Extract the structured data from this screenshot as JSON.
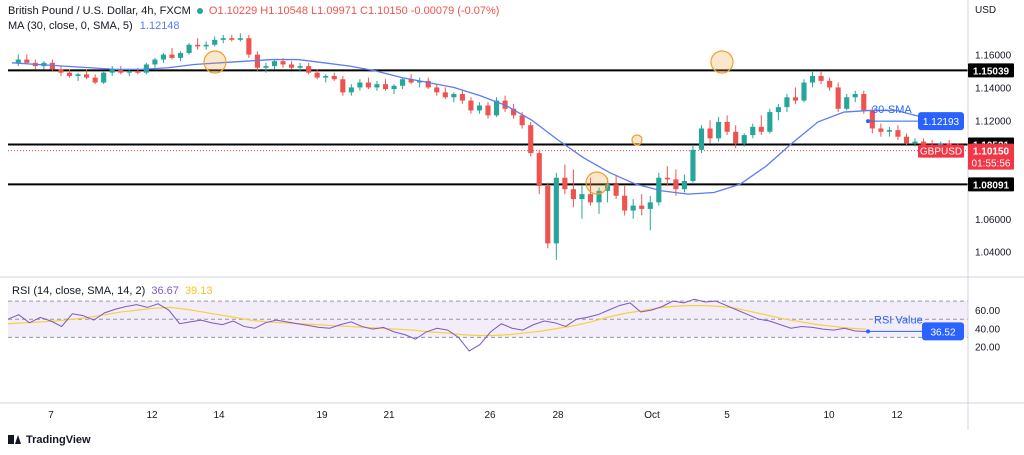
{
  "header": {
    "symbol": "British Pound / U.S. Dollar, 4h, FXCM",
    "ohlc": "O1.10229 H1.10548 L1.09971 C1.10150 -0.00079 (-0.07%)",
    "ma_label": "MA (30, close, 0, SMA, 5)",
    "ma_value": "1.12148",
    "rsi_label": "RSI (14, close, SMA, 14, 2)",
    "rsi_value": "36.67",
    "rsi_ma_value": "39.13",
    "currency": "USD"
  },
  "brand": "TradingView",
  "colors": {
    "up": "#26a69a",
    "down": "#ef5350",
    "ma": "#5b7cf5",
    "rsi": "#7e57c2",
    "rsi_ma": "#f5d142",
    "highlight": "#f0a030",
    "label_blue": "#2962ff",
    "badge_red": "#f23645",
    "black": "#000000",
    "grid_text": "#131722"
  },
  "chart_data": {
    "type": "candlestick",
    "instrument": "GBPUSD",
    "timeframe": "4h",
    "price_axis": {
      "ticks": [
        "1.16000",
        "1.14000",
        "1.12000",
        "1.10000",
        "1.08000",
        "1.06000",
        "1.04000"
      ],
      "ylim": [
        1.03,
        1.175
      ]
    },
    "rsi_axis": {
      "ticks": [
        "60.00",
        "40.00",
        "20.00"
      ],
      "ylim": [
        5,
        80
      ],
      "bands": [
        70,
        50,
        30
      ]
    },
    "x_labels": [
      "7",
      "12",
      "14",
      "19",
      "21",
      "26",
      "28",
      "Oct",
      "5",
      "10",
      "12"
    ],
    "levels": [
      {
        "price": 1.15039,
        "label": "1.15039"
      },
      {
        "price": 1.10521,
        "label": "1.10521"
      },
      {
        "price": 1.08091,
        "label": "1.08091"
      }
    ],
    "last_price": {
      "symbol": "GBPUSD",
      "value": "1.10150",
      "countdown": "01:55:56"
    },
    "sma_label": {
      "text": "30-SMA",
      "value": "1.12193"
    },
    "rsi_label": {
      "text": "RSI Value",
      "value": "36.52"
    },
    "highlights": [
      "swing high area mid-Sep",
      "swing low late Sep",
      "minor pivot end Sep",
      "swing high early Oct"
    ],
    "candles": [
      [
        1.155,
        1.16,
        1.153,
        1.157
      ],
      [
        1.157,
        1.16,
        1.154,
        1.155
      ],
      [
        1.155,
        1.157,
        1.151,
        1.153
      ],
      [
        1.153,
        1.156,
        1.151,
        1.155
      ],
      [
        1.155,
        1.157,
        1.15,
        1.151
      ],
      [
        1.151,
        1.153,
        1.147,
        1.149
      ],
      [
        1.149,
        1.151,
        1.146,
        1.147
      ],
      [
        1.147,
        1.149,
        1.144,
        1.148
      ],
      [
        1.148,
        1.151,
        1.145,
        1.146
      ],
      [
        1.146,
        1.148,
        1.142,
        1.143
      ],
      [
        1.143,
        1.15,
        1.142,
        1.149
      ],
      [
        1.149,
        1.153,
        1.147,
        1.151
      ],
      [
        1.151,
        1.153,
        1.148,
        1.149
      ],
      [
        1.149,
        1.151,
        1.147,
        1.15
      ],
      [
        1.15,
        1.152,
        1.148,
        1.149
      ],
      [
        1.149,
        1.155,
        1.148,
        1.154
      ],
      [
        1.154,
        1.158,
        1.152,
        1.157
      ],
      [
        1.157,
        1.161,
        1.155,
        1.16
      ],
      [
        1.16,
        1.164,
        1.157,
        1.158
      ],
      [
        1.158,
        1.162,
        1.156,
        1.161
      ],
      [
        1.161,
        1.167,
        1.16,
        1.166
      ],
      [
        1.166,
        1.17,
        1.163,
        1.165
      ],
      [
        1.165,
        1.168,
        1.163,
        1.166
      ],
      [
        1.166,
        1.171,
        1.165,
        1.169
      ],
      [
        1.169,
        1.172,
        1.167,
        1.17
      ],
      [
        1.17,
        1.172,
        1.168,
        1.169
      ],
      [
        1.169,
        1.173,
        1.168,
        1.17
      ],
      [
        1.17,
        1.172,
        1.158,
        1.16
      ],
      [
        1.16,
        1.162,
        1.15,
        1.152
      ],
      [
        1.152,
        1.155,
        1.149,
        1.153
      ],
      [
        1.153,
        1.157,
        1.151,
        1.156
      ],
      [
        1.156,
        1.158,
        1.152,
        1.154
      ],
      [
        1.154,
        1.156,
        1.151,
        1.152
      ],
      [
        1.152,
        1.155,
        1.15,
        1.153
      ],
      [
        1.153,
        1.155,
        1.148,
        1.149
      ],
      [
        1.149,
        1.151,
        1.145,
        1.146
      ],
      [
        1.146,
        1.148,
        1.143,
        1.147
      ],
      [
        1.147,
        1.149,
        1.144,
        1.145
      ],
      [
        1.145,
        1.147,
        1.135,
        1.137
      ],
      [
        1.137,
        1.142,
        1.135,
        1.14
      ],
      [
        1.14,
        1.145,
        1.138,
        1.143
      ],
      [
        1.143,
        1.146,
        1.139,
        1.14
      ],
      [
        1.14,
        1.144,
        1.138,
        1.142
      ],
      [
        1.142,
        1.145,
        1.138,
        1.139
      ],
      [
        1.139,
        1.142,
        1.136,
        1.141
      ],
      [
        1.141,
        1.146,
        1.139,
        1.145
      ],
      [
        1.145,
        1.148,
        1.142,
        1.143
      ],
      [
        1.143,
        1.146,
        1.14,
        1.144
      ],
      [
        1.144,
        1.146,
        1.139,
        1.14
      ],
      [
        1.14,
        1.142,
        1.135,
        1.137
      ],
      [
        1.137,
        1.14,
        1.133,
        1.134
      ],
      [
        1.134,
        1.137,
        1.131,
        1.136
      ],
      [
        1.136,
        1.138,
        1.13,
        1.132
      ],
      [
        1.132,
        1.134,
        1.124,
        1.126
      ],
      [
        1.126,
        1.131,
        1.124,
        1.129
      ],
      [
        1.129,
        1.131,
        1.121,
        1.123
      ],
      [
        1.123,
        1.134,
        1.122,
        1.132
      ],
      [
        1.132,
        1.135,
        1.125,
        1.127
      ],
      [
        1.127,
        1.13,
        1.121,
        1.123
      ],
      [
        1.123,
        1.125,
        1.115,
        1.117
      ],
      [
        1.117,
        1.119,
        1.098,
        1.1
      ],
      [
        1.1,
        1.102,
        1.075,
        1.08
      ],
      [
        1.08,
        1.082,
        1.042,
        1.045
      ],
      [
        1.045,
        1.088,
        1.035,
        1.085
      ],
      [
        1.085,
        1.093,
        1.075,
        1.078
      ],
      [
        1.078,
        1.09,
        1.067,
        1.072
      ],
      [
        1.072,
        1.08,
        1.06,
        1.075
      ],
      [
        1.075,
        1.085,
        1.068,
        1.07
      ],
      [
        1.07,
        1.079,
        1.063,
        1.077
      ],
      [
        1.077,
        1.085,
        1.07,
        1.081
      ],
      [
        1.081,
        1.086,
        1.072,
        1.074
      ],
      [
        1.074,
        1.08,
        1.062,
        1.065
      ],
      [
        1.065,
        1.072,
        1.06,
        1.068
      ],
      [
        1.068,
        1.075,
        1.062,
        1.066
      ],
      [
        1.066,
        1.074,
        1.053,
        1.07
      ],
      [
        1.07,
        1.088,
        1.068,
        1.085
      ],
      [
        1.085,
        1.092,
        1.08,
        1.084
      ],
      [
        1.084,
        1.09,
        1.074,
        1.078
      ],
      [
        1.078,
        1.087,
        1.076,
        1.083
      ],
      [
        1.083,
        1.105,
        1.082,
        1.102
      ],
      [
        1.102,
        1.117,
        1.1,
        1.115
      ],
      [
        1.115,
        1.12,
        1.106,
        1.109
      ],
      [
        1.109,
        1.122,
        1.107,
        1.119
      ],
      [
        1.119,
        1.123,
        1.111,
        1.113
      ],
      [
        1.113,
        1.117,
        1.103,
        1.106
      ],
      [
        1.106,
        1.112,
        1.104,
        1.111
      ],
      [
        1.111,
        1.118,
        1.109,
        1.116
      ],
      [
        1.116,
        1.123,
        1.111,
        1.113
      ],
      [
        1.113,
        1.127,
        1.112,
        1.125
      ],
      [
        1.125,
        1.13,
        1.12,
        1.128
      ],
      [
        1.128,
        1.136,
        1.125,
        1.134
      ],
      [
        1.134,
        1.14,
        1.13,
        1.132
      ],
      [
        1.132,
        1.145,
        1.131,
        1.143
      ],
      [
        1.143,
        1.15,
        1.14,
        1.147
      ],
      [
        1.147,
        1.15,
        1.142,
        1.144
      ],
      [
        1.144,
        1.146,
        1.138,
        1.14
      ],
      [
        1.14,
        1.143,
        1.125,
        1.127
      ],
      [
        1.127,
        1.136,
        1.126,
        1.134
      ],
      [
        1.134,
        1.138,
        1.131,
        1.136
      ],
      [
        1.136,
        1.138,
        1.124,
        1.126
      ],
      [
        1.126,
        1.128,
        1.112,
        1.115
      ],
      [
        1.115,
        1.118,
        1.11,
        1.113
      ],
      [
        1.113,
        1.116,
        1.11,
        1.114
      ],
      [
        1.114,
        1.117,
        1.108,
        1.11
      ],
      [
        1.11,
        1.112,
        1.105,
        1.106
      ],
      [
        1.106,
        1.109,
        1.104,
        1.107
      ],
      [
        1.107,
        1.109,
        1.103,
        1.105
      ],
      [
        1.105,
        1.108,
        1.102,
        1.104
      ],
      [
        1.104,
        1.107,
        1.101,
        1.106
      ],
      [
        1.106,
        1.108,
        1.102,
        1.103
      ],
      [
        1.103,
        1.106,
        1.1,
        1.102
      ]
    ],
    "sma": [
      1.155,
      1.154,
      1.153,
      1.152,
      1.151,
      1.151,
      1.152,
      1.154,
      1.155,
      1.156,
      1.157,
      1.157,
      1.155,
      1.153,
      1.15,
      1.146,
      1.143,
      1.14,
      1.135,
      1.129,
      1.12,
      1.108,
      1.097,
      1.088,
      1.081,
      1.077,
      1.075,
      1.076,
      1.081,
      1.092,
      1.106,
      1.119,
      1.125,
      1.126,
      1.126,
      1.1219
    ],
    "rsi": [
      50,
      55,
      46,
      52,
      48,
      42,
      56,
      54,
      49,
      57,
      61,
      64,
      66,
      63,
      67,
      60,
      45,
      47,
      49,
      46,
      44,
      48,
      42,
      40,
      46,
      49,
      47,
      45,
      43,
      41,
      40,
      44,
      47,
      42,
      39,
      41,
      36,
      33,
      28,
      36,
      40,
      38,
      30,
      15,
      22,
      36,
      45,
      40,
      38,
      44,
      48,
      46,
      42,
      50,
      52,
      55,
      60,
      65,
      68,
      58,
      60,
      64,
      70,
      68,
      72,
      69,
      70,
      65,
      60,
      55,
      50,
      48,
      44,
      40,
      42,
      41,
      39,
      38,
      40,
      37,
      36.5
    ],
    "rsi_ma": [
      45,
      46,
      47,
      48,
      50,
      52,
      55,
      58,
      60,
      62,
      63,
      61,
      58,
      55,
      52,
      49,
      47,
      46,
      45,
      44,
      43,
      42,
      41,
      40,
      39,
      38,
      36,
      35,
      33,
      32,
      32,
      33,
      35,
      37,
      40,
      43,
      47,
      52,
      56,
      59,
      62,
      64,
      65,
      65,
      64,
      62,
      58,
      54,
      50,
      47,
      44,
      42,
      40,
      39.1
    ]
  }
}
